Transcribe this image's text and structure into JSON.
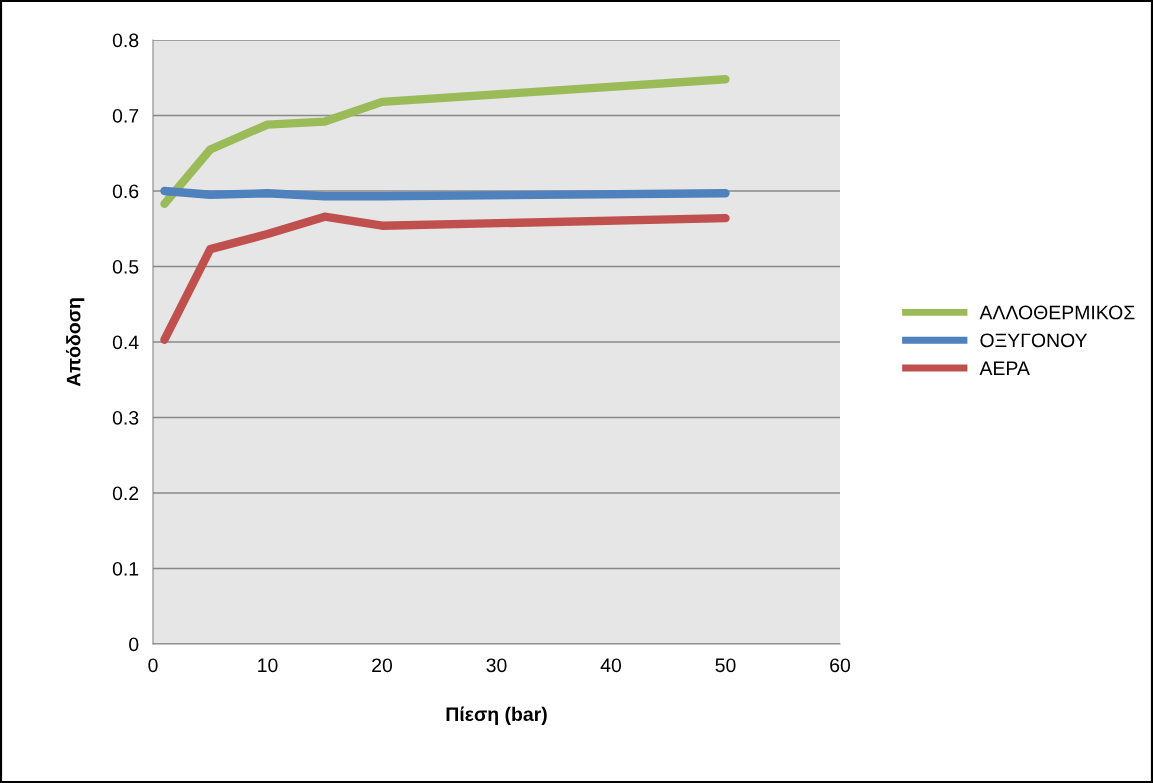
{
  "chart_data": {
    "type": "line",
    "xlabel": "Πίεση (bar)",
    "ylabel": "Απόδοση",
    "x": [
      1,
      5,
      10,
      15,
      20,
      50
    ],
    "series": [
      {
        "name": "ΑΛΛΟΘΕΡΜΙΚΟΣ",
        "color": "#9bbb59",
        "values": [
          0.583,
          0.655,
          0.688,
          0.692,
          0.718,
          0.748
        ]
      },
      {
        "name": "ΟΞΥΓΟΝΟΥ",
        "color": "#4f81bd",
        "values": [
          0.6,
          0.595,
          0.597,
          0.593,
          0.593,
          0.597
        ]
      },
      {
        "name": "ΑΕΡΑ",
        "color": "#c0504d",
        "values": [
          0.403,
          0.523,
          0.543,
          0.566,
          0.554,
          0.564
        ]
      }
    ],
    "xlim": [
      0,
      60
    ],
    "xticks": [
      0,
      10,
      20,
      30,
      40,
      50,
      60
    ],
    "ylim": [
      0,
      0.8
    ],
    "yticks": [
      0,
      0.1,
      0.2,
      0.3,
      0.4,
      0.5,
      0.6,
      0.7,
      0.8
    ],
    "grid": "y",
    "legend": "right",
    "marker": "none",
    "line_style": "solid"
  }
}
